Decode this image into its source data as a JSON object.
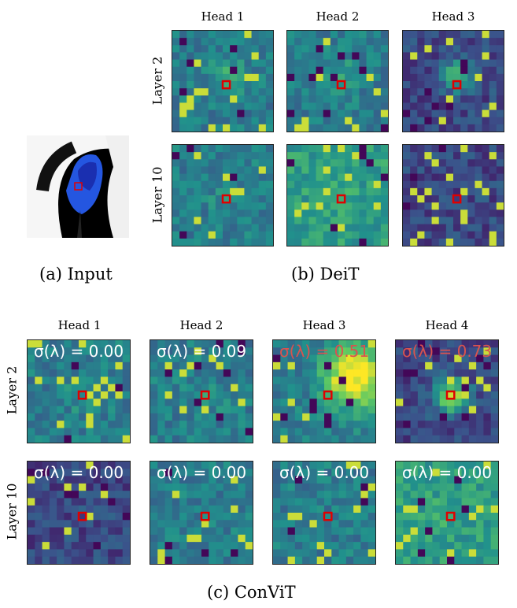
{
  "panel_a": {
    "caption": "(a) Input",
    "image_alt": "Bird (indigo bunting) on a branch"
  },
  "panel_b": {
    "caption": "(b) DeiT",
    "heads": [
      "Head 1",
      "Head 2",
      "Head 3"
    ],
    "rows": [
      "Layer 2",
      "Layer 10"
    ]
  },
  "panel_c": {
    "caption": "(c) ConViT",
    "heads": [
      "Head 1",
      "Head 2",
      "Head 3",
      "Head 4"
    ],
    "rows": [
      "Layer 2",
      "Layer 10"
    ],
    "sigma": {
      "layer2": [
        "σ(λ) = 0.00",
        "σ(λ) = 0.09",
        "σ(λ) = 0.51",
        "σ(λ) = 0.73"
      ],
      "layer10": [
        "σ(λ) = 0.00",
        "σ(λ) = 0.00",
        "σ(λ) = 0.00",
        "σ(λ) = 0.00"
      ]
    },
    "sigma_colors": {
      "layer2": [
        "#ffffff",
        "#ffffff",
        "#d9534f",
        "#d9534f"
      ],
      "layer10": [
        "#ffffff",
        "#ffffff",
        "#ffffff",
        "#ffffff"
      ]
    }
  },
  "colors": {
    "marker": "#e00000",
    "viridis": [
      "#440154",
      "#3b528b",
      "#21918c",
      "#5ec962",
      "#fde725"
    ]
  }
}
